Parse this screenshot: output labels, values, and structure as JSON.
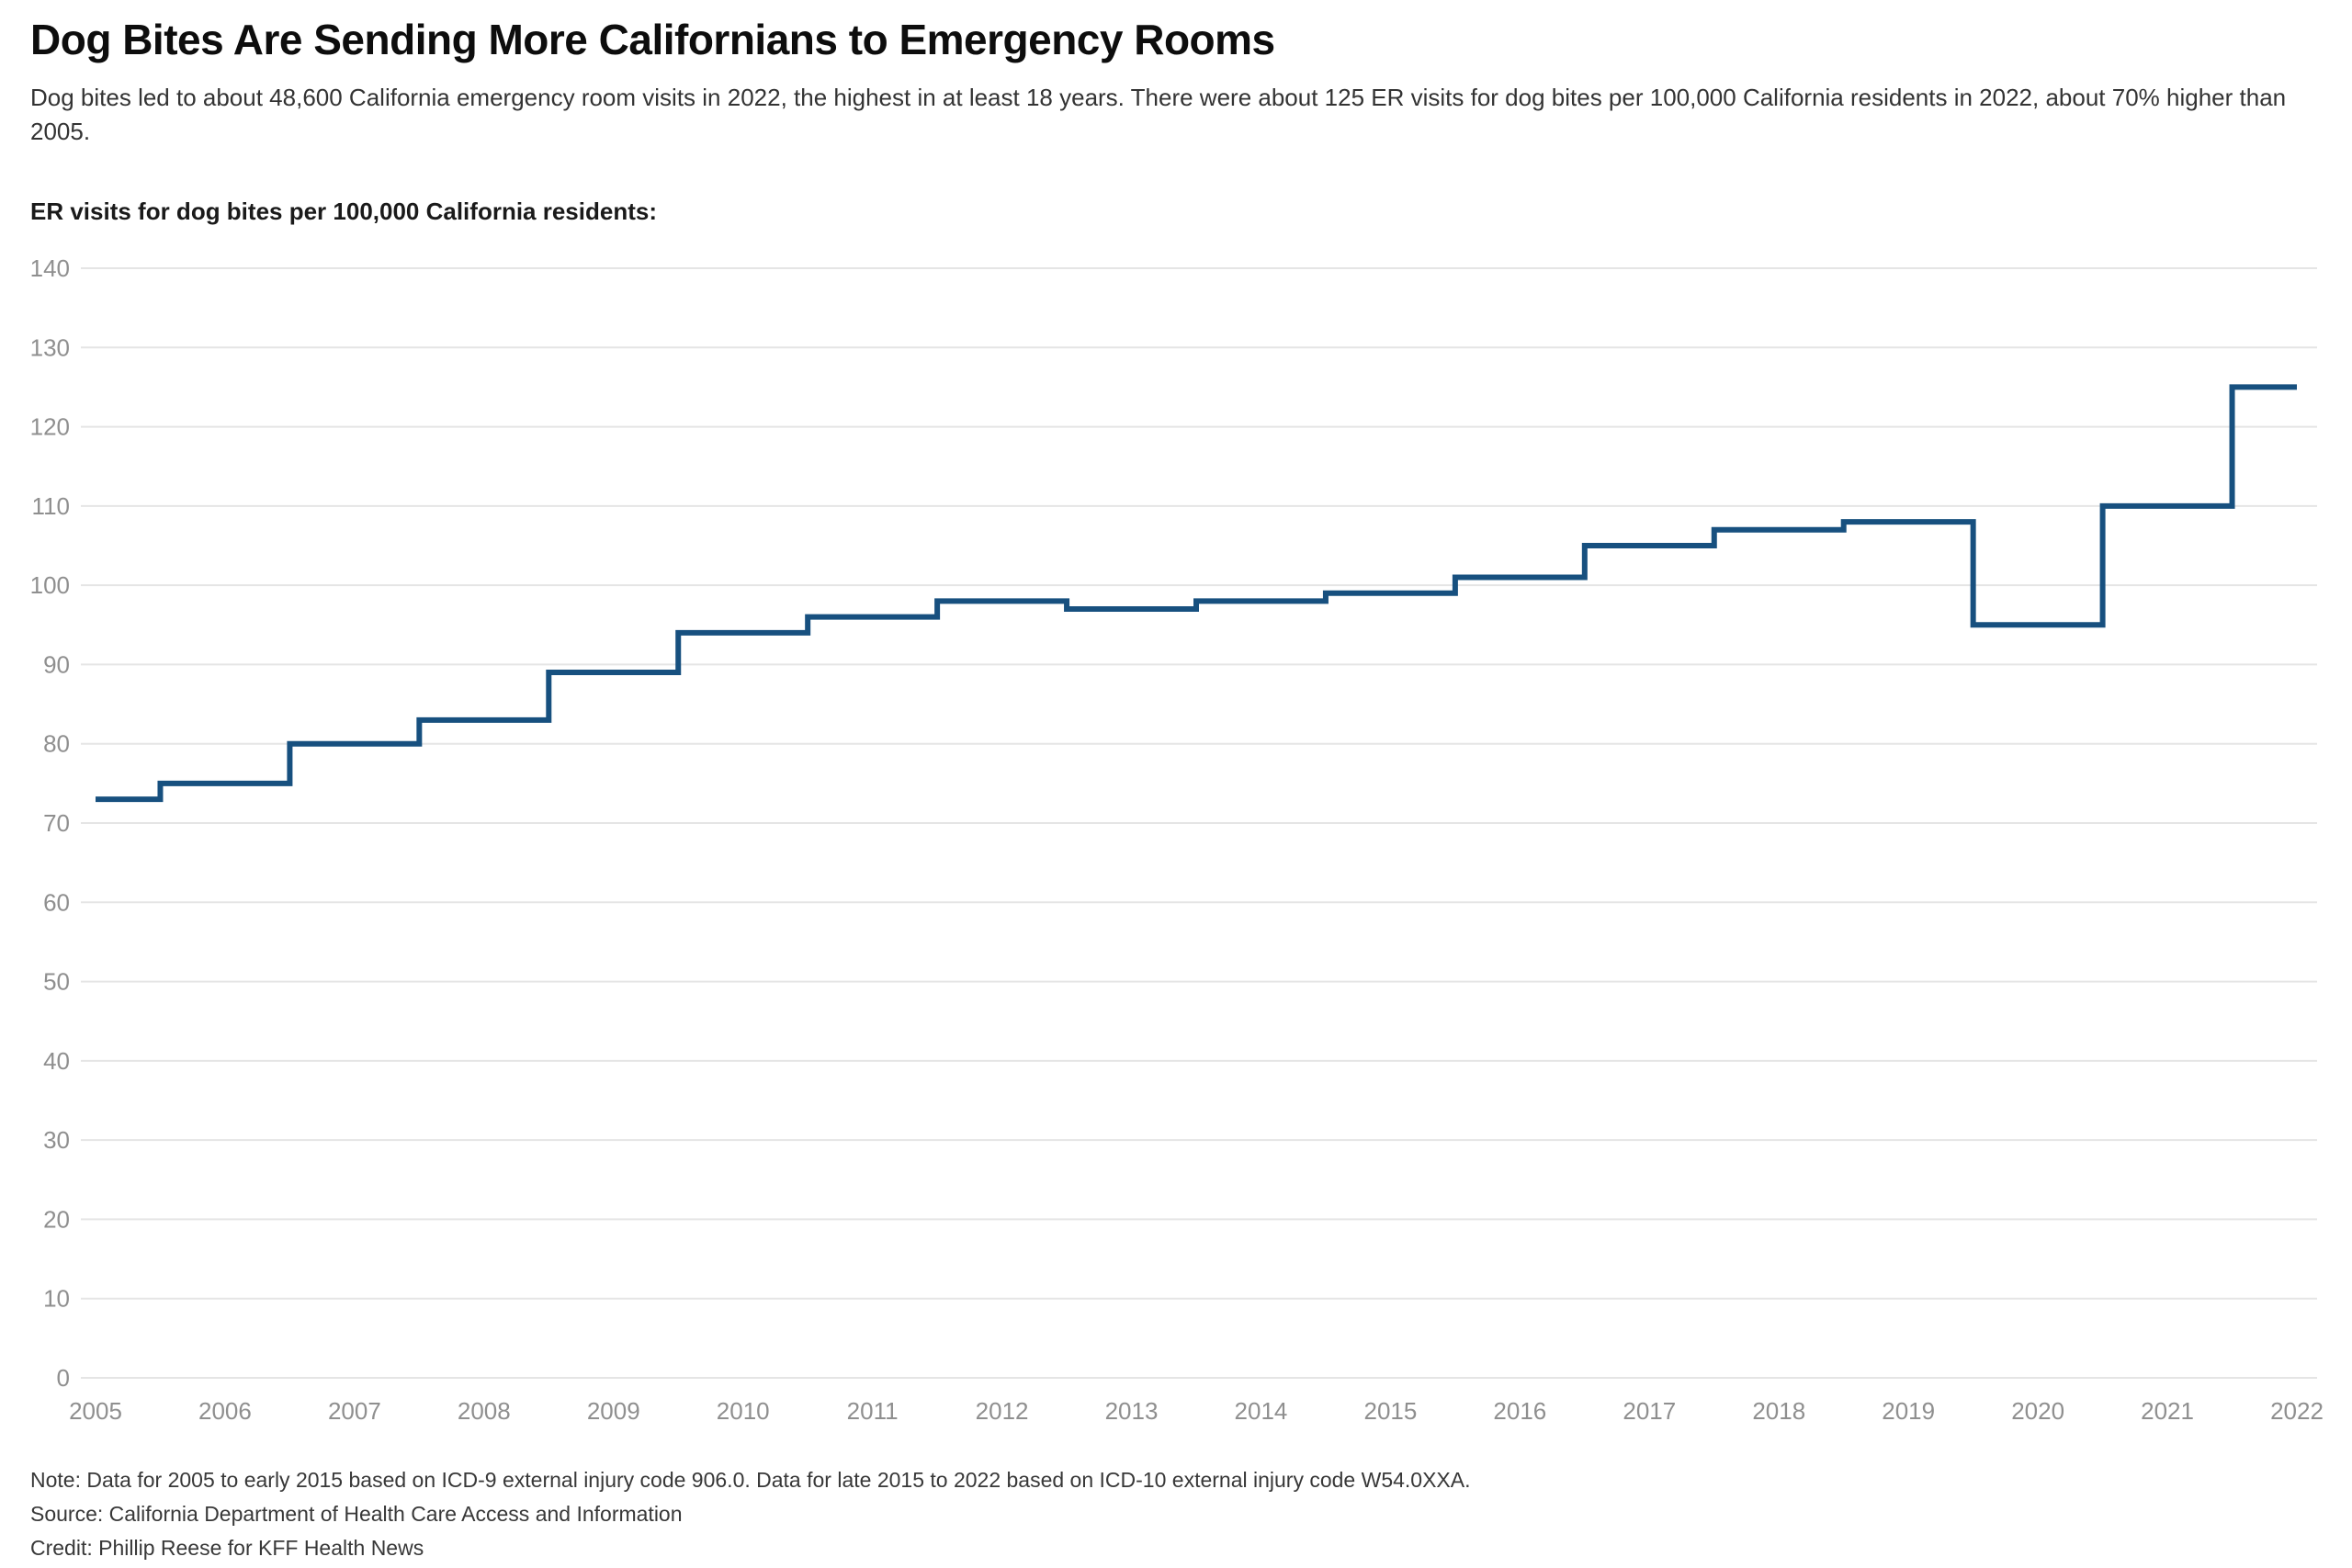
{
  "header": {
    "title": "Dog Bites Are Sending More Californians to Emergency Rooms",
    "subtitle": "Dog bites led to about 48,600 California emergency room visits in 2022, the highest in at least 18 years. There were about 125 ER visits for dog bites per 100,000 California residents in 2022, about 70% higher than 2005."
  },
  "chart_data": {
    "type": "line",
    "line_style": "step",
    "title": "ER visits for dog bites per 100,000 California residents:",
    "x": [
      2005,
      2006,
      2007,
      2008,
      2009,
      2010,
      2011,
      2012,
      2013,
      2014,
      2015,
      2016,
      2017,
      2018,
      2019,
      2020,
      2021,
      2022
    ],
    "series": [
      {
        "name": "ER visits for dog bites per 100,000 residents",
        "values": [
          73,
          75,
          80,
          83,
          89,
          94,
          96,
          98,
          97,
          98,
          99,
          101,
          105,
          107,
          108,
          95,
          110,
          125
        ]
      }
    ],
    "ylim": [
      0,
      140
    ],
    "ytick_interval": 10,
    "xtick_labels": [
      "2005",
      "2006",
      "2007",
      "2008",
      "2009",
      "2010",
      "2011",
      "2012",
      "2013",
      "2014",
      "2015",
      "2016",
      "2017",
      "2018",
      "2019",
      "2020",
      "2021",
      "2022"
    ],
    "grid": "horizontal",
    "legend": "none",
    "colors": {
      "line": "#17507f",
      "axis_labels": "#8f8f8f",
      "gridlines": "#e5e5e5"
    }
  },
  "footer": {
    "note": "Note: Data for 2005 to early 2015 based on ICD-9 external injury code 906.0. Data for late 2015 to 2022 based on ICD-10 external injury code W54.0XXA.",
    "source": "Source: California Department of Health Care Access and Information",
    "credit": "Credit: Phillip Reese for KFF Health News"
  }
}
